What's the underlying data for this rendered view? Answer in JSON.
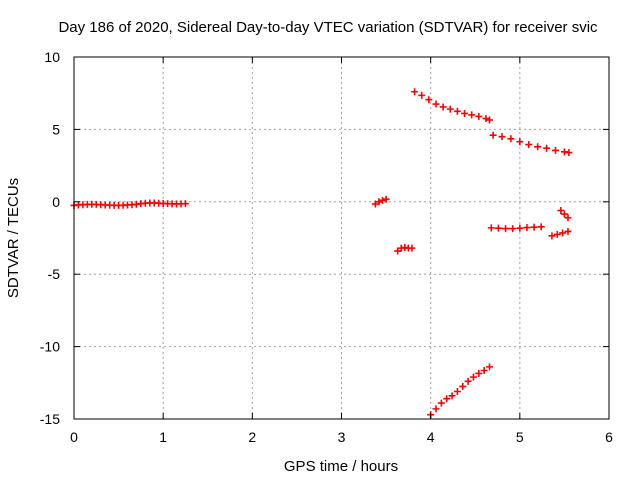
{
  "chart_data": {
    "type": "scatter",
    "title": "Day 186 of 2020, Sidereal Day-to-day VTEC variation (SDTVAR) for receiver svic",
    "xlabel": "GPS time / hours",
    "ylabel": "SDTVAR / TECUs",
    "xlim": [
      0,
      6
    ],
    "ylim": [
      -15,
      10
    ],
    "x_ticks": [
      "0",
      "1",
      "2",
      "3",
      "4",
      "5",
      "6"
    ],
    "y_ticks": [
      "10",
      "5",
      "0",
      "-5",
      "-10",
      "-15"
    ],
    "x_tick_values": [
      0,
      1,
      2,
      3,
      4,
      5,
      6
    ],
    "y_tick_values": [
      10,
      5,
      0,
      -5,
      -10,
      -15
    ],
    "grid": true,
    "marker_color": "#ff0000",
    "series": [
      {
        "values": [
          {
            "x": 0.0,
            "y": -0.25
          },
          {
            "x": 0.05,
            "y": -0.22
          },
          {
            "x": 0.1,
            "y": -0.2
          },
          {
            "x": 0.15,
            "y": -0.18
          },
          {
            "x": 0.2,
            "y": -0.17
          },
          {
            "x": 0.25,
            "y": -0.18
          },
          {
            "x": 0.3,
            "y": -0.2
          },
          {
            "x": 0.35,
            "y": -0.22
          },
          {
            "x": 0.4,
            "y": -0.23
          },
          {
            "x": 0.45,
            "y": -0.24
          },
          {
            "x": 0.5,
            "y": -0.25
          },
          {
            "x": 0.55,
            "y": -0.24
          },
          {
            "x": 0.6,
            "y": -0.22
          },
          {
            "x": 0.65,
            "y": -0.2
          },
          {
            "x": 0.7,
            "y": -0.17
          },
          {
            "x": 0.75,
            "y": -0.13
          },
          {
            "x": 0.8,
            "y": -0.1
          },
          {
            "x": 0.85,
            "y": -0.08
          },
          {
            "x": 0.9,
            "y": -0.08
          },
          {
            "x": 0.95,
            "y": -0.1
          },
          {
            "x": 1.0,
            "y": -0.12
          },
          {
            "x": 1.05,
            "y": -0.13
          },
          {
            "x": 1.1,
            "y": -0.14
          },
          {
            "x": 1.15,
            "y": -0.15
          },
          {
            "x": 1.2,
            "y": -0.14
          },
          {
            "x": 1.25,
            "y": -0.13
          },
          {
            "x": 3.38,
            "y": -0.15
          },
          {
            "x": 3.42,
            "y": 0.0
          },
          {
            "x": 3.46,
            "y": 0.1
          },
          {
            "x": 3.5,
            "y": 0.18
          },
          {
            "x": 3.63,
            "y": -3.4
          },
          {
            "x": 3.67,
            "y": -3.2
          },
          {
            "x": 3.71,
            "y": -3.15
          },
          {
            "x": 3.75,
            "y": -3.2
          },
          {
            "x": 3.79,
            "y": -3.2
          },
          {
            "x": 3.82,
            "y": 7.6
          },
          {
            "x": 3.9,
            "y": 7.35
          },
          {
            "x": 3.98,
            "y": 7.05
          },
          {
            "x": 4.06,
            "y": 6.75
          },
          {
            "x": 4.14,
            "y": 6.55
          },
          {
            "x": 4.22,
            "y": 6.4
          },
          {
            "x": 4.3,
            "y": 6.25
          },
          {
            "x": 4.38,
            "y": 6.1
          },
          {
            "x": 4.46,
            "y": 6.0
          },
          {
            "x": 4.54,
            "y": 5.9
          },
          {
            "x": 4.62,
            "y": 5.75
          },
          {
            "x": 4.66,
            "y": 5.65
          },
          {
            "x": 4.7,
            "y": 4.6
          },
          {
            "x": 4.8,
            "y": 4.5
          },
          {
            "x": 4.9,
            "y": 4.35
          },
          {
            "x": 5.0,
            "y": 4.15
          },
          {
            "x": 5.1,
            "y": 3.95
          },
          {
            "x": 5.2,
            "y": 3.8
          },
          {
            "x": 5.3,
            "y": 3.7
          },
          {
            "x": 5.4,
            "y": 3.55
          },
          {
            "x": 5.5,
            "y": 3.45
          },
          {
            "x": 5.55,
            "y": 3.4
          },
          {
            "x": 4.68,
            "y": -1.8
          },
          {
            "x": 4.76,
            "y": -1.82
          },
          {
            "x": 4.84,
            "y": -1.85
          },
          {
            "x": 4.92,
            "y": -1.85
          },
          {
            "x": 5.0,
            "y": -1.82
          },
          {
            "x": 5.08,
            "y": -1.78
          },
          {
            "x": 5.16,
            "y": -1.75
          },
          {
            "x": 5.24,
            "y": -1.73
          },
          {
            "x": 5.36,
            "y": -2.35
          },
          {
            "x": 5.42,
            "y": -2.25
          },
          {
            "x": 5.48,
            "y": -2.15
          },
          {
            "x": 5.54,
            "y": -2.05
          },
          {
            "x": 5.46,
            "y": -0.6
          },
          {
            "x": 5.5,
            "y": -0.85
          },
          {
            "x": 5.54,
            "y": -1.1
          },
          {
            "x": 4.0,
            "y": -14.7
          },
          {
            "x": 4.06,
            "y": -14.3
          },
          {
            "x": 4.12,
            "y": -13.9
          },
          {
            "x": 4.18,
            "y": -13.6
          },
          {
            "x": 4.24,
            "y": -13.4
          },
          {
            "x": 4.3,
            "y": -13.1
          },
          {
            "x": 4.36,
            "y": -12.75
          },
          {
            "x": 4.42,
            "y": -12.4
          },
          {
            "x": 4.48,
            "y": -12.1
          },
          {
            "x": 4.54,
            "y": -11.85
          },
          {
            "x": 4.6,
            "y": -11.65
          },
          {
            "x": 4.66,
            "y": -11.4
          }
        ]
      }
    ]
  }
}
